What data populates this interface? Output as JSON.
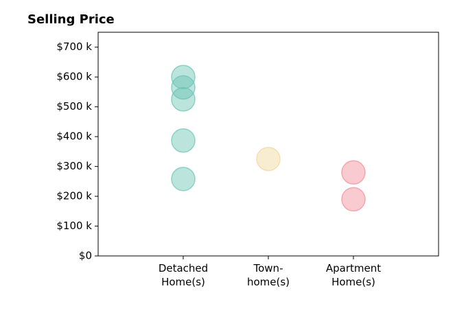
{
  "chart_data": {
    "type": "strip",
    "title": "Selling Price",
    "categories": [
      "Detached\nHome(s)",
      "Town-\nhome(s)",
      "Apartment\nHome(s)"
    ],
    "values": [
      [
        600000,
        565000,
        525000,
        387000,
        258000
      ],
      [
        325000
      ],
      [
        280000,
        190000
      ]
    ],
    "colors": [
      "#69c3b2",
      "#f0d59a",
      "#f28b96"
    ],
    "ylim": [
      0,
      750000
    ],
    "yticks": [
      {
        "value": 0,
        "label": "$0"
      },
      {
        "value": 100000,
        "label": "$100 k"
      },
      {
        "value": 200000,
        "label": "$200 k"
      },
      {
        "value": 300000,
        "label": "$300 k"
      },
      {
        "value": 400000,
        "label": "$400 k"
      },
      {
        "value": 500000,
        "label": "$500 k"
      },
      {
        "value": 600000,
        "label": "$600 k"
      },
      {
        "value": 700000,
        "label": "$700 k"
      }
    ],
    "grid": false
  }
}
